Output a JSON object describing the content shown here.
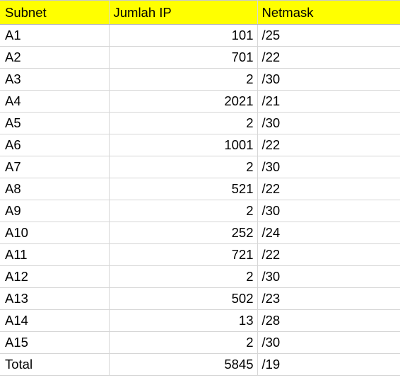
{
  "sheet": {
    "header": {
      "col_subnet": "Subnet",
      "col_jumlah_ip": "Jumlah IP",
      "col_netmask": "Netmask",
      "highlight_color": "#ffff00"
    },
    "rows": [
      {
        "subnet": "A1",
        "jumlah_ip": "101",
        "netmask": "/25"
      },
      {
        "subnet": "A2",
        "jumlah_ip": "701",
        "netmask": "/22"
      },
      {
        "subnet": "A3",
        "jumlah_ip": "2",
        "netmask": "/30"
      },
      {
        "subnet": "A4",
        "jumlah_ip": "2021",
        "netmask": "/21"
      },
      {
        "subnet": "A5",
        "jumlah_ip": "2",
        "netmask": "/30"
      },
      {
        "subnet": "A6",
        "jumlah_ip": "1001",
        "netmask": "/22"
      },
      {
        "subnet": "A7",
        "jumlah_ip": "2",
        "netmask": "/30"
      },
      {
        "subnet": "A8",
        "jumlah_ip": "521",
        "netmask": "/22"
      },
      {
        "subnet": "A9",
        "jumlah_ip": "2",
        "netmask": "/30"
      },
      {
        "subnet": "A10",
        "jumlah_ip": "252",
        "netmask": "/24"
      },
      {
        "subnet": "A11",
        "jumlah_ip": "721",
        "netmask": "/22"
      },
      {
        "subnet": "A12",
        "jumlah_ip": "2",
        "netmask": "/30"
      },
      {
        "subnet": "A13",
        "jumlah_ip": "502",
        "netmask": "/23"
      },
      {
        "subnet": "A14",
        "jumlah_ip": "13",
        "netmask": "/28"
      },
      {
        "subnet": "A15",
        "jumlah_ip": "2",
        "netmask": "/30"
      },
      {
        "subnet": "Total",
        "jumlah_ip": "5845",
        "netmask": "/19"
      }
    ]
  }
}
